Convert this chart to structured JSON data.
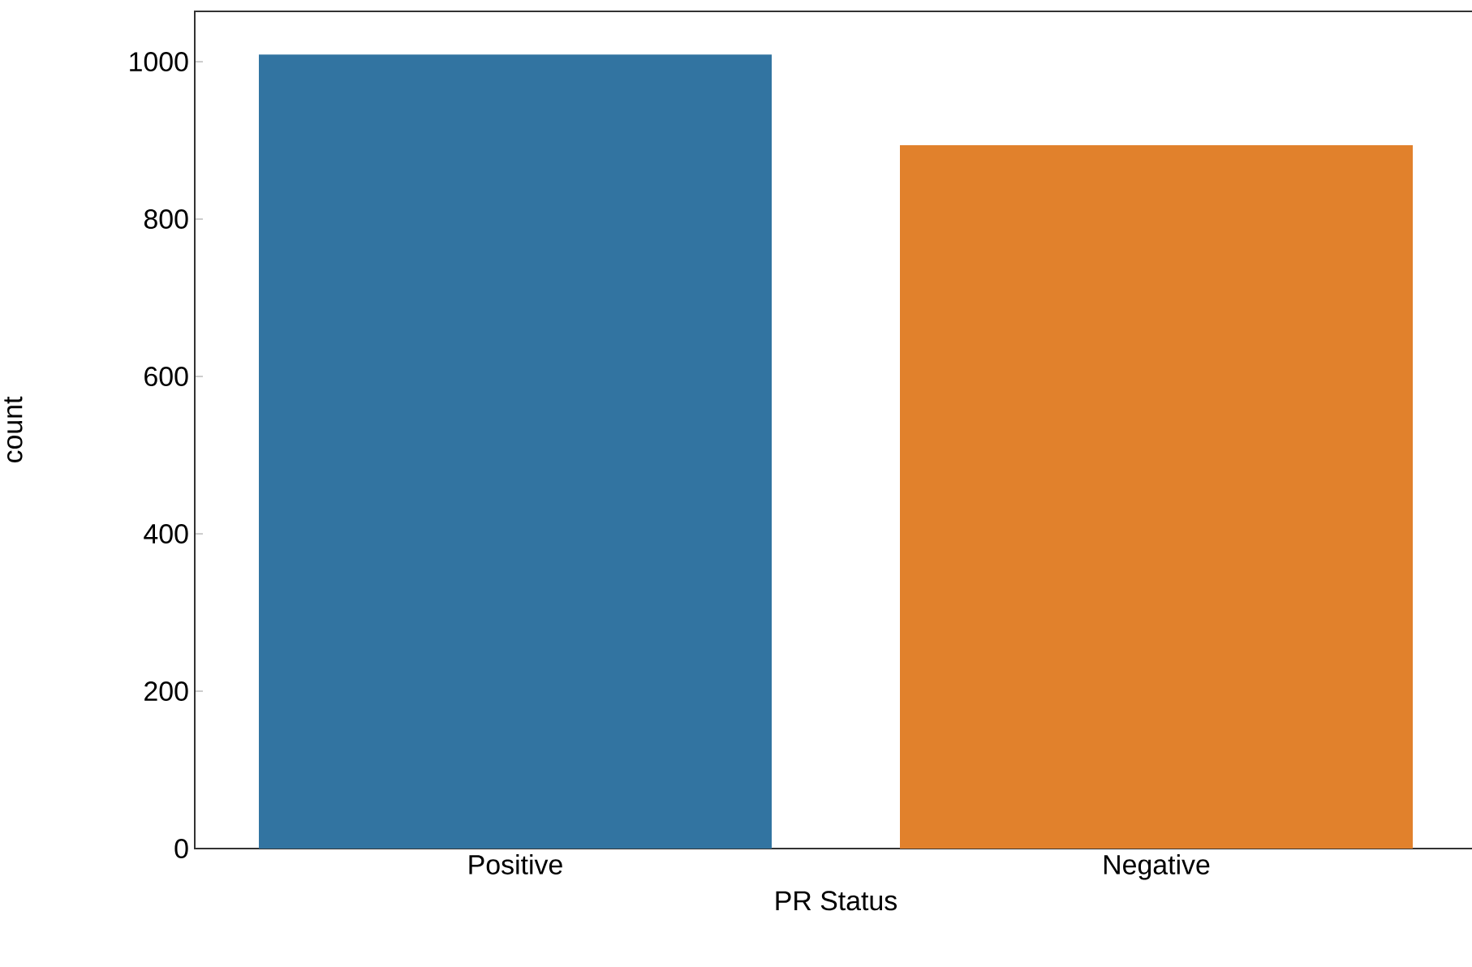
{
  "chart_data": {
    "type": "bar",
    "xlabel": "PR Status",
    "ylabel": "count",
    "categories": [
      "Positive",
      "Negative"
    ],
    "values": [
      1009,
      894
    ],
    "colors": [
      "#3274a1",
      "#e1812c"
    ],
    "ylim": [
      0,
      1064
    ],
    "yticks": [
      0,
      200,
      400,
      600,
      800,
      1000
    ],
    "grid": false
  }
}
